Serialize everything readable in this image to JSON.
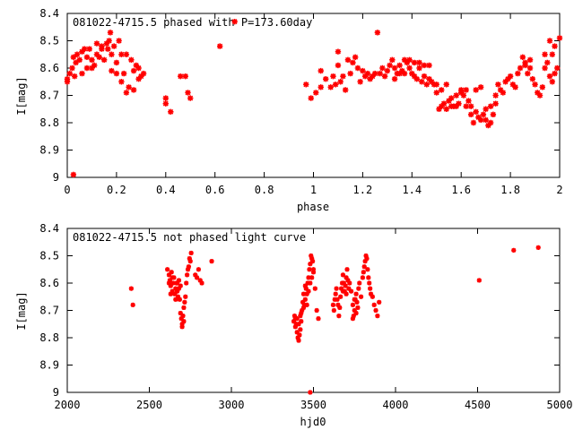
{
  "colors": {
    "points": "#ff0000",
    "frame": "#000000",
    "background": "#ffffff"
  },
  "chart_data": [
    {
      "type": "scatter",
      "title": "081022-4715.5 phased with P=173.60day",
      "xlabel": "phase",
      "ylabel": "I[mag]",
      "xlim": [
        0,
        2
      ],
      "ylim": [
        8.4,
        9.0
      ],
      "y_inverted": true,
      "grid": false,
      "xticks": [
        "0",
        "0.2",
        "0.4",
        "0.6",
        "0.8",
        "1",
        "1.2",
        "1.4",
        "1.6",
        "1.8",
        "2"
      ],
      "xtick_values": [
        0,
        0.2,
        0.4,
        0.6,
        0.8,
        1.0,
        1.2,
        1.4,
        1.6,
        1.8,
        2.0
      ],
      "yticks": [
        "8.4",
        "8.5",
        "8.6",
        "8.7",
        "8.8",
        "8.9",
        "9"
      ],
      "ytick_values": [
        8.4,
        8.5,
        8.6,
        8.7,
        8.8,
        8.9,
        9.0
      ],
      "points": [
        [
          0.0,
          8.64
        ],
        [
          0.01,
          8.62
        ],
        [
          0.02,
          8.6
        ],
        [
          0.025,
          8.56
        ],
        [
          0.03,
          8.63
        ],
        [
          0.035,
          8.58
        ],
        [
          0.04,
          8.55
        ],
        [
          0.05,
          8.57
        ],
        [
          0.06,
          8.54
        ],
        [
          0.07,
          8.53
        ],
        [
          0.08,
          8.56
        ],
        [
          0.09,
          8.53
        ],
        [
          0.1,
          8.6
        ],
        [
          0.11,
          8.59
        ],
        [
          0.12,
          8.55
        ],
        [
          0.13,
          8.56
        ],
        [
          0.14,
          8.52
        ],
        [
          0.15,
          8.57
        ],
        [
          0.16,
          8.51
        ],
        [
          0.165,
          8.53
        ],
        [
          0.17,
          8.5
        ],
        [
          0.175,
          8.47
        ],
        [
          0.18,
          8.55
        ],
        [
          0.19,
          8.52
        ],
        [
          0.2,
          8.58
        ],
        [
          0.21,
          8.5
        ],
        [
          0.22,
          8.55
        ],
        [
          0.23,
          8.62
        ],
        [
          0.24,
          8.55
        ],
        [
          0.25,
          8.67
        ],
        [
          0.26,
          8.57
        ],
        [
          0.27,
          8.61
        ],
        [
          0.28,
          8.59
        ],
        [
          0.29,
          8.6
        ],
        [
          0.3,
          8.63
        ],
        [
          0.31,
          8.62
        ],
        [
          0.06,
          8.62
        ],
        [
          0.08,
          8.6
        ],
        [
          0.1,
          8.57
        ],
        [
          0.12,
          8.51
        ],
        [
          0.14,
          8.53
        ],
        [
          0.18,
          8.61
        ],
        [
          0.2,
          8.62
        ],
        [
          0.22,
          8.65
        ],
        [
          0.24,
          8.69
        ],
        [
          0.27,
          8.68
        ],
        [
          0.29,
          8.64
        ],
        [
          0.0,
          8.65
        ],
        [
          0.025,
          8.99
        ],
        [
          0.4,
          8.71
        ],
        [
          0.4,
          8.73
        ],
        [
          0.42,
          8.76
        ],
        [
          0.46,
          8.63
        ],
        [
          0.48,
          8.63
        ],
        [
          0.49,
          8.69
        ],
        [
          0.5,
          8.71
        ],
        [
          0.62,
          8.52
        ],
        [
          0.68,
          8.43
        ],
        [
          0.97,
          8.66
        ],
        [
          0.99,
          8.71
        ],
        [
          1.01,
          8.69
        ],
        [
          1.03,
          8.67
        ],
        [
          1.05,
          8.64
        ],
        [
          1.07,
          8.67
        ],
        [
          1.09,
          8.66
        ],
        [
          1.1,
          8.59
        ],
        [
          1.11,
          8.65
        ],
        [
          1.12,
          8.63
        ],
        [
          1.13,
          8.68
        ],
        [
          1.14,
          8.57
        ],
        [
          1.15,
          8.62
        ],
        [
          1.16,
          8.58
        ],
        [
          1.17,
          8.56
        ],
        [
          1.18,
          8.6
        ],
        [
          1.19,
          8.65
        ],
        [
          1.2,
          8.61
        ],
        [
          1.21,
          8.63
        ],
        [
          1.22,
          8.62
        ],
        [
          1.23,
          8.64
        ],
        [
          1.24,
          8.63
        ],
        [
          1.25,
          8.62
        ],
        [
          1.26,
          8.47
        ],
        [
          1.27,
          8.62
        ],
        [
          1.28,
          8.6
        ],
        [
          1.29,
          8.63
        ],
        [
          1.3,
          8.61
        ],
        [
          1.31,
          8.59
        ],
        [
          1.32,
          8.57
        ],
        [
          1.33,
          8.6
        ],
        [
          1.34,
          8.62
        ],
        [
          1.35,
          8.59
        ],
        [
          1.36,
          8.61
        ],
        [
          1.37,
          8.62
        ],
        [
          1.38,
          8.58
        ],
        [
          1.39,
          8.6
        ],
        [
          1.4,
          8.62
        ],
        [
          1.41,
          8.63
        ],
        [
          1.42,
          8.64
        ],
        [
          1.43,
          8.6
        ],
        [
          1.44,
          8.65
        ],
        [
          1.45,
          8.63
        ],
        [
          1.46,
          8.66
        ],
        [
          1.47,
          8.64
        ],
        [
          1.48,
          8.65
        ],
        [
          1.49,
          8.66
        ],
        [
          1.5,
          8.66
        ],
        [
          1.51,
          8.75
        ],
        [
          1.52,
          8.74
        ],
        [
          1.53,
          8.73
        ],
        [
          1.54,
          8.75
        ],
        [
          1.55,
          8.72
        ],
        [
          1.56,
          8.71
        ],
        [
          1.57,
          8.74
        ],
        [
          1.58,
          8.7
        ],
        [
          1.59,
          8.73
        ],
        [
          1.6,
          8.69
        ],
        [
          1.61,
          8.7
        ],
        [
          1.62,
          8.74
        ],
        [
          1.63,
          8.72
        ],
        [
          1.64,
          8.77
        ],
        [
          1.65,
          8.8
        ],
        [
          1.66,
          8.76
        ],
        [
          1.67,
          8.78
        ],
        [
          1.68,
          8.79
        ],
        [
          1.69,
          8.77
        ],
        [
          1.7,
          8.75
        ],
        [
          1.71,
          8.81
        ],
        [
          1.72,
          8.8
        ],
        [
          1.73,
          8.77
        ],
        [
          1.74,
          8.7
        ],
        [
          1.75,
          8.66
        ],
        [
          1.76,
          8.68
        ],
        [
          1.77,
          8.69
        ],
        [
          1.78,
          8.65
        ],
        [
          1.79,
          8.64
        ],
        [
          1.8,
          8.63
        ],
        [
          1.81,
          8.66
        ],
        [
          1.82,
          8.67
        ],
        [
          1.83,
          8.62
        ],
        [
          1.84,
          8.6
        ],
        [
          1.85,
          8.56
        ],
        [
          1.86,
          8.58
        ],
        [
          1.87,
          8.62
        ],
        [
          1.88,
          8.6
        ],
        [
          1.89,
          8.64
        ],
        [
          1.9,
          8.66
        ],
        [
          1.91,
          8.69
        ],
        [
          1.92,
          8.7
        ],
        [
          1.93,
          8.67
        ],
        [
          1.94,
          8.6
        ],
        [
          1.95,
          8.58
        ],
        [
          1.96,
          8.63
        ],
        [
          1.97,
          8.65
        ],
        [
          1.98,
          8.62
        ],
        [
          1.99,
          8.6
        ],
        [
          2.0,
          8.49
        ],
        [
          1.96,
          8.5
        ],
        [
          1.94,
          8.55
        ],
        [
          1.98,
          8.52
        ],
        [
          1.97,
          8.55
        ],
        [
          1.88,
          8.57
        ],
        [
          1.86,
          8.59
        ],
        [
          1.66,
          8.68
        ],
        [
          1.68,
          8.67
        ],
        [
          1.6,
          8.68
        ],
        [
          1.58,
          8.74
        ],
        [
          1.56,
          8.74
        ],
        [
          1.54,
          8.66
        ],
        [
          1.52,
          8.68
        ],
        [
          1.5,
          8.69
        ],
        [
          1.62,
          8.68
        ],
        [
          1.64,
          8.74
        ],
        [
          1.7,
          8.79
        ],
        [
          1.72,
          8.74
        ],
        [
          1.74,
          8.73
        ],
        [
          1.45,
          8.59
        ],
        [
          1.47,
          8.59
        ],
        [
          1.41,
          8.58
        ],
        [
          1.39,
          8.57
        ],
        [
          1.37,
          8.57
        ],
        [
          1.35,
          8.62
        ],
        [
          1.43,
          8.58
        ],
        [
          1.33,
          8.64
        ],
        [
          1.03,
          8.61
        ],
        [
          1.08,
          8.63
        ],
        [
          1.1,
          8.54
        ]
      ]
    },
    {
      "type": "scatter",
      "title": "081022-4715.5 not phased light curve",
      "xlabel": "hjd0",
      "ylabel": "I[mag]",
      "xlim": [
        2000,
        5000
      ],
      "ylim": [
        8.4,
        9.0
      ],
      "y_inverted": true,
      "grid": false,
      "xticks": [
        "2000",
        "2500",
        "3000",
        "3500",
        "4000",
        "4500",
        "5000"
      ],
      "xtick_values": [
        2000,
        2500,
        3000,
        3500,
        4000,
        4500,
        5000
      ],
      "yticks": [
        "8.4",
        "8.5",
        "8.6",
        "8.7",
        "8.8",
        "8.9",
        "9"
      ],
      "ytick_values": [
        8.4,
        8.5,
        8.6,
        8.7,
        8.8,
        8.9,
        9.0
      ],
      "points": [
        [
          2390,
          8.62
        ],
        [
          2400,
          8.68
        ],
        [
          2610,
          8.55
        ],
        [
          2620,
          8.57
        ],
        [
          2625,
          8.59
        ],
        [
          2630,
          8.61
        ],
        [
          2635,
          8.56
        ],
        [
          2640,
          8.63
        ],
        [
          2645,
          8.6
        ],
        [
          2650,
          8.58
        ],
        [
          2655,
          8.64
        ],
        [
          2660,
          8.62
        ],
        [
          2665,
          8.6
        ],
        [
          2670,
          8.63
        ],
        [
          2675,
          8.65
        ],
        [
          2680,
          8.62
        ],
        [
          2685,
          8.66
        ],
        [
          2690,
          8.71
        ],
        [
          2695,
          8.73
        ],
        [
          2700,
          8.75
        ],
        [
          2705,
          8.72
        ],
        [
          2710,
          8.69
        ],
        [
          2715,
          8.67
        ],
        [
          2720,
          8.65
        ],
        [
          2725,
          8.6
        ],
        [
          2730,
          8.57
        ],
        [
          2735,
          8.55
        ],
        [
          2740,
          8.54
        ],
        [
          2745,
          8.51
        ],
        [
          2750,
          8.52
        ],
        [
          2755,
          8.49
        ],
        [
          2660,
          8.66
        ],
        [
          2670,
          8.6
        ],
        [
          2680,
          8.59
        ],
        [
          2690,
          8.61
        ],
        [
          2700,
          8.76
        ],
        [
          2710,
          8.74
        ],
        [
          2780,
          8.57
        ],
        [
          2790,
          8.58
        ],
        [
          2800,
          8.55
        ],
        [
          2810,
          8.59
        ],
        [
          2820,
          8.6
        ],
        [
          2880,
          8.52
        ],
        [
          2620,
          8.6
        ],
        [
          2630,
          8.64
        ],
        [
          2640,
          8.58
        ],
        [
          3380,
          8.74
        ],
        [
          3385,
          8.72
        ],
        [
          3390,
          8.76
        ],
        [
          3395,
          8.75
        ],
        [
          3400,
          8.78
        ],
        [
          3405,
          8.8
        ],
        [
          3410,
          8.81
        ],
        [
          3415,
          8.79
        ],
        [
          3420,
          8.77
        ],
        [
          3425,
          8.74
        ],
        [
          3430,
          8.7
        ],
        [
          3435,
          8.67
        ],
        [
          3440,
          8.64
        ],
        [
          3445,
          8.68
        ],
        [
          3450,
          8.66
        ],
        [
          3455,
          8.62
        ],
        [
          3460,
          8.64
        ],
        [
          3465,
          8.6
        ],
        [
          3470,
          8.58
        ],
        [
          3475,
          8.55
        ],
        [
          3480,
          8.53
        ],
        [
          3485,
          8.5
        ],
        [
          3490,
          8.51
        ],
        [
          3495,
          8.52
        ],
        [
          3500,
          8.56
        ],
        [
          3510,
          8.62
        ],
        [
          3520,
          8.7
        ],
        [
          3530,
          8.73
        ],
        [
          3400,
          8.73
        ],
        [
          3410,
          8.75
        ],
        [
          3420,
          8.72
        ],
        [
          3440,
          8.69
        ],
        [
          3450,
          8.61
        ],
        [
          3460,
          8.68
        ],
        [
          3470,
          8.63
        ],
        [
          3480,
          8.6
        ],
        [
          3490,
          8.58
        ],
        [
          3500,
          8.55
        ],
        [
          3425,
          8.71
        ],
        [
          3390,
          8.73
        ],
        [
          3480,
          9.0
        ],
        [
          3620,
          8.68
        ],
        [
          3625,
          8.7
        ],
        [
          3630,
          8.66
        ],
        [
          3635,
          8.64
        ],
        [
          3640,
          8.62
        ],
        [
          3645,
          8.66
        ],
        [
          3650,
          8.68
        ],
        [
          3655,
          8.72
        ],
        [
          3660,
          8.69
        ],
        [
          3665,
          8.65
        ],
        [
          3670,
          8.62
        ],
        [
          3675,
          8.6
        ],
        [
          3680,
          8.57
        ],
        [
          3685,
          8.6
        ],
        [
          3690,
          8.63
        ],
        [
          3695,
          8.61
        ],
        [
          3700,
          8.58
        ],
        [
          3705,
          8.55
        ],
        [
          3710,
          8.59
        ],
        [
          3715,
          8.62
        ],
        [
          3720,
          8.6
        ],
        [
          3730,
          8.63
        ],
        [
          3740,
          8.68
        ],
        [
          3745,
          8.72
        ],
        [
          3750,
          8.7
        ],
        [
          3755,
          8.66
        ],
        [
          3760,
          8.64
        ],
        [
          3765,
          8.67
        ],
        [
          3770,
          8.69
        ],
        [
          3775,
          8.62
        ],
        [
          3780,
          8.6
        ],
        [
          3790,
          8.65
        ],
        [
          3800,
          8.58
        ],
        [
          3805,
          8.56
        ],
        [
          3810,
          8.54
        ],
        [
          3815,
          8.52
        ],
        [
          3820,
          8.5
        ],
        [
          3825,
          8.51
        ],
        [
          3830,
          8.55
        ],
        [
          3835,
          8.58
        ],
        [
          3840,
          8.6
        ],
        [
          3845,
          8.62
        ],
        [
          3850,
          8.64
        ],
        [
          3860,
          8.65
        ],
        [
          3870,
          8.68
        ],
        [
          3880,
          8.7
        ],
        [
          3890,
          8.72
        ],
        [
          3900,
          8.67
        ],
        [
          3740,
          8.73
        ],
        [
          3750,
          8.66
        ],
        [
          3760,
          8.71
        ],
        [
          3700,
          8.64
        ],
        [
          3680,
          8.63
        ],
        [
          4510,
          8.59
        ],
        [
          4720,
          8.48
        ],
        [
          4870,
          8.47
        ]
      ]
    }
  ]
}
